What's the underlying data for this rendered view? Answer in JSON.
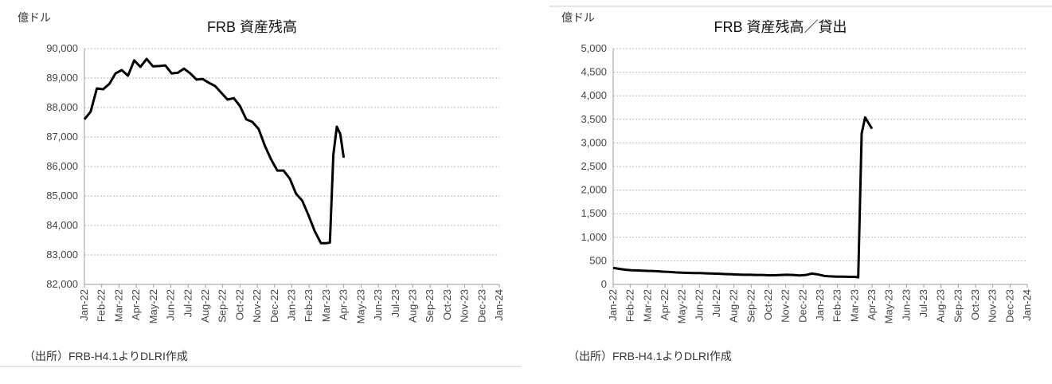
{
  "chart_data": [
    {
      "type": "line",
      "title": "FRB 資産残高",
      "y_unit": "億ドル",
      "source": "（出所）FRB-H4.1よりDLRI作成",
      "x": [
        0,
        0.36,
        0.72,
        1.08,
        1.44,
        1.8,
        2.16,
        2.52,
        2.88,
        3.24,
        3.6,
        3.96,
        4.32,
        4.68,
        5.04,
        5.4,
        5.76,
        6.12,
        6.48,
        6.84,
        7.2,
        7.56,
        7.92,
        8.28,
        8.64,
        9,
        9.36,
        9.72,
        10.08,
        10.44,
        10.8,
        11.16,
        11.52,
        11.88,
        12.24,
        12.6,
        12.96,
        13.32,
        13.68,
        14,
        14.2,
        14.4,
        14.6,
        14.8,
        15
      ],
      "series": [
        {
          "color": "#000000",
          "values": [
            87600,
            87860,
            88650,
            88620,
            88800,
            89160,
            89270,
            89080,
            89600,
            89380,
            89650,
            89400,
            89410,
            89430,
            89160,
            89180,
            89320,
            89160,
            88950,
            88970,
            88840,
            88730,
            88500,
            88270,
            88320,
            88050,
            87600,
            87510,
            87270,
            86700,
            86240,
            85860,
            85860,
            85590,
            85080,
            84840,
            84350,
            83810,
            83400,
            83400,
            83420,
            86400,
            87350,
            87100,
            86300
          ]
        }
      ],
      "xlim": [
        0,
        24
      ],
      "xticks": [
        {
          "value": 0,
          "label": "Jan-22"
        },
        {
          "value": 1,
          "label": "Feb-22"
        },
        {
          "value": 2,
          "label": "Mar-22"
        },
        {
          "value": 3,
          "label": "Apr-22"
        },
        {
          "value": 4,
          "label": "May-22"
        },
        {
          "value": 5,
          "label": "Jun-22"
        },
        {
          "value": 6,
          "label": "Jul-22"
        },
        {
          "value": 7,
          "label": "Aug-22"
        },
        {
          "value": 8,
          "label": "Sep-22"
        },
        {
          "value": 9,
          "label": "Oct-22"
        },
        {
          "value": 10,
          "label": "Nov-22"
        },
        {
          "value": 11,
          "label": "Dec-22"
        },
        {
          "value": 12,
          "label": "Jan-23"
        },
        {
          "value": 13,
          "label": "Feb-23"
        },
        {
          "value": 14,
          "label": "Mar-23"
        },
        {
          "value": 15,
          "label": "Apr-23"
        },
        {
          "value": 16,
          "label": "May-23"
        },
        {
          "value": 17,
          "label": "Jun-23"
        },
        {
          "value": 18,
          "label": "Jul-23"
        },
        {
          "value": 19,
          "label": "Aug-23"
        },
        {
          "value": 20,
          "label": "Sep-23"
        },
        {
          "value": 21,
          "label": "Oct-23"
        },
        {
          "value": 22,
          "label": "Nov-23"
        },
        {
          "value": 23,
          "label": "Dec-23"
        },
        {
          "value": 24,
          "label": "Jan-24"
        }
      ],
      "ylim": [
        82000,
        90000
      ],
      "yticks": [
        {
          "value": 82000,
          "label": "82,000"
        },
        {
          "value": 83000,
          "label": "83,000"
        },
        {
          "value": 84000,
          "label": "84,000"
        },
        {
          "value": 85000,
          "label": "85,000"
        },
        {
          "value": 86000,
          "label": "86,000"
        },
        {
          "value": 87000,
          "label": "87,000"
        },
        {
          "value": 88000,
          "label": "88,000"
        },
        {
          "value": 89000,
          "label": "89,000"
        },
        {
          "value": 90000,
          "label": "90,000"
        }
      ],
      "grid": true
    },
    {
      "type": "line",
      "title": "FRB 資産残高／貸出",
      "y_unit": "億ドル",
      "source": "（出所）FRB-H4.1よりDLRI作成",
      "x": [
        0,
        0.36,
        0.72,
        1.08,
        1.44,
        1.8,
        2.16,
        2.52,
        2.88,
        3.24,
        3.6,
        3.96,
        4.32,
        4.68,
        5.04,
        5.4,
        5.76,
        6.12,
        6.48,
        6.84,
        7.2,
        7.56,
        7.92,
        8.28,
        8.64,
        9,
        9.36,
        9.72,
        10.08,
        10.44,
        10.8,
        11.16,
        11.52,
        11.88,
        12.24,
        12.6,
        12.96,
        13.32,
        13.68,
        14,
        14.2,
        14.4,
        14.6,
        14.8,
        15
      ],
      "series": [
        {
          "color": "#000000",
          "values": [
            350,
            330,
            310,
            300,
            295,
            290,
            285,
            280,
            270,
            265,
            255,
            250,
            245,
            240,
            240,
            235,
            230,
            225,
            220,
            215,
            210,
            205,
            205,
            200,
            200,
            195,
            195,
            200,
            205,
            200,
            190,
            200,
            230,
            210,
            180,
            170,
            165,
            165,
            160,
            160,
            150,
            3200,
            3540,
            3420,
            3300
          ]
        }
      ],
      "xlim": [
        0,
        24
      ],
      "xticks": [
        {
          "value": 0,
          "label": "Jan-22"
        },
        {
          "value": 1,
          "label": "Feb-22"
        },
        {
          "value": 2,
          "label": "Mar-22"
        },
        {
          "value": 3,
          "label": "Apr-22"
        },
        {
          "value": 4,
          "label": "May-22"
        },
        {
          "value": 5,
          "label": "Jun-22"
        },
        {
          "value": 6,
          "label": "Jul-22"
        },
        {
          "value": 7,
          "label": "Aug-22"
        },
        {
          "value": 8,
          "label": "Sep-22"
        },
        {
          "value": 9,
          "label": "Oct-22"
        },
        {
          "value": 10,
          "label": "Nov-22"
        },
        {
          "value": 11,
          "label": "Dec-22"
        },
        {
          "value": 12,
          "label": "Jan-23"
        },
        {
          "value": 13,
          "label": "Feb-23"
        },
        {
          "value": 14,
          "label": "Mar-23"
        },
        {
          "value": 15,
          "label": "Apr-23"
        },
        {
          "value": 16,
          "label": "May-23"
        },
        {
          "value": 17,
          "label": "Jun-23"
        },
        {
          "value": 18,
          "label": "Jul-23"
        },
        {
          "value": 19,
          "label": "Aug-23"
        },
        {
          "value": 20,
          "label": "Sep-23"
        },
        {
          "value": 21,
          "label": "Oct-23"
        },
        {
          "value": 22,
          "label": "Nov-23"
        },
        {
          "value": 23,
          "label": "Dec-23"
        },
        {
          "value": 24,
          "label": "Jan-24"
        }
      ],
      "ylim": [
        0,
        5000
      ],
      "yticks": [
        0,
        {
          "value": 500,
          "label": "500"
        },
        {
          "value": 1000,
          "label": "1,000"
        },
        {
          "value": 1500,
          "label": "1,500"
        },
        {
          "value": 2000,
          "label": "2,000"
        },
        {
          "value": 2500,
          "label": "2,500"
        },
        {
          "value": 3000,
          "label": "3,000"
        },
        {
          "value": 3500,
          "label": "3,500"
        },
        {
          "value": 4000,
          "label": "4,000"
        },
        {
          "value": 4500,
          "label": "4,500"
        },
        {
          "value": 5000,
          "label": "5,000"
        }
      ],
      "grid": true
    }
  ]
}
